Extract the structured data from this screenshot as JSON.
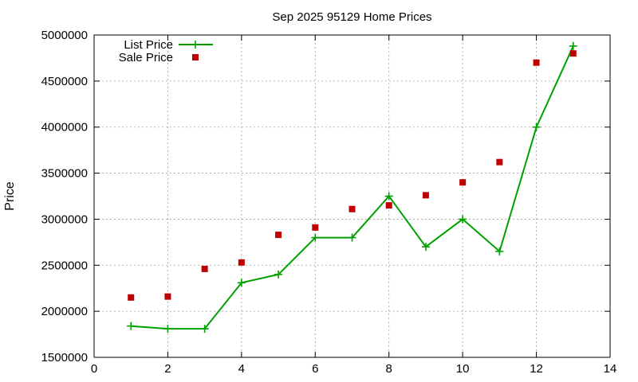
{
  "chart_data": {
    "type": "line",
    "title": "Sep 2025 95129 Home Prices",
    "xlabel": "",
    "ylabel": "Price",
    "xlim": [
      0,
      14
    ],
    "ylim": [
      1500000,
      5000000
    ],
    "xticks": [
      0,
      2,
      4,
      6,
      8,
      10,
      12,
      14
    ],
    "yticks": [
      1500000,
      2000000,
      2500000,
      3000000,
      3500000,
      4000000,
      4500000,
      5000000
    ],
    "grid": true,
    "legend_position": "top-left",
    "series": [
      {
        "name": "List Price",
        "kind": "line-with-plus-markers",
        "color": "#00a000",
        "x": [
          1,
          2,
          3,
          4,
          5,
          6,
          7,
          8,
          9,
          10,
          11,
          12,
          13
        ],
        "y": [
          1840000,
          1810000,
          1810000,
          2310000,
          2400000,
          2800000,
          2800000,
          3250000,
          2700000,
          3000000,
          2650000,
          4000000,
          4880000
        ]
      },
      {
        "name": "Sale Price",
        "kind": "square-points",
        "color": "#c00000",
        "x": [
          1,
          2,
          3,
          4,
          5,
          6,
          7,
          8,
          9,
          10,
          11,
          12,
          13
        ],
        "y": [
          2150000,
          2160000,
          2460000,
          2530000,
          2830000,
          2910000,
          3110000,
          3150000,
          3260000,
          3400000,
          3620000,
          4700000,
          4800000
        ]
      }
    ]
  }
}
